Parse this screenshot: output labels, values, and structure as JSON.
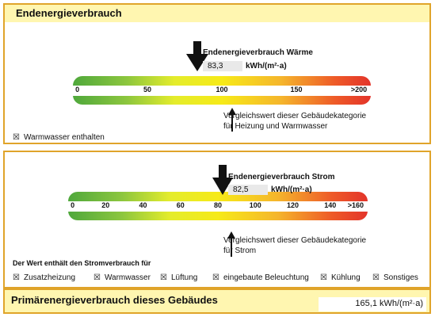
{
  "heat": {
    "title": "Endenergieverbrauch",
    "value_label": "Endenergieverbrauch Wärme",
    "value": "83,3",
    "unit": "kWh/(m²·a)",
    "ticks": [
      "0",
      "50",
      "100",
      "150",
      ">200"
    ],
    "marker_value": 83.3,
    "scale_max": 200,
    "reference_value": 107,
    "reference_text_1": "Vergleichswert dieser Gebäudekategorie",
    "reference_text_2": "für Heizung und Warmwasser",
    "checkbox_label": "Warmwasser enthalten",
    "checkbox_mark": "☒"
  },
  "power": {
    "value_label": "Endenergieverbrauch Strom",
    "value": "82,5",
    "unit": "kWh/(m²·a)",
    "ticks": [
      "0",
      "20",
      "40",
      "60",
      "80",
      "100",
      "120",
      "140",
      ">160"
    ],
    "marker_value": 82.5,
    "scale_max": 160,
    "reference_value": 87,
    "reference_text_1": "Vergleichswert dieser Gebäudekategorie",
    "reference_text_2": "für Strom",
    "includes_title": "Der Wert enthält den Stromverbrauch für",
    "includes": [
      "Zusatzheizung",
      "Warmwasser",
      "Lüftung",
      "eingebaute Beleuchtung",
      "Kühlung",
      "Sonstiges"
    ],
    "checkbox_mark": "☒"
  },
  "primary": {
    "title": "Primärenergieverbrauch dieses Gebäudes",
    "value": "165,1 kWh/(m²·a)"
  }
}
